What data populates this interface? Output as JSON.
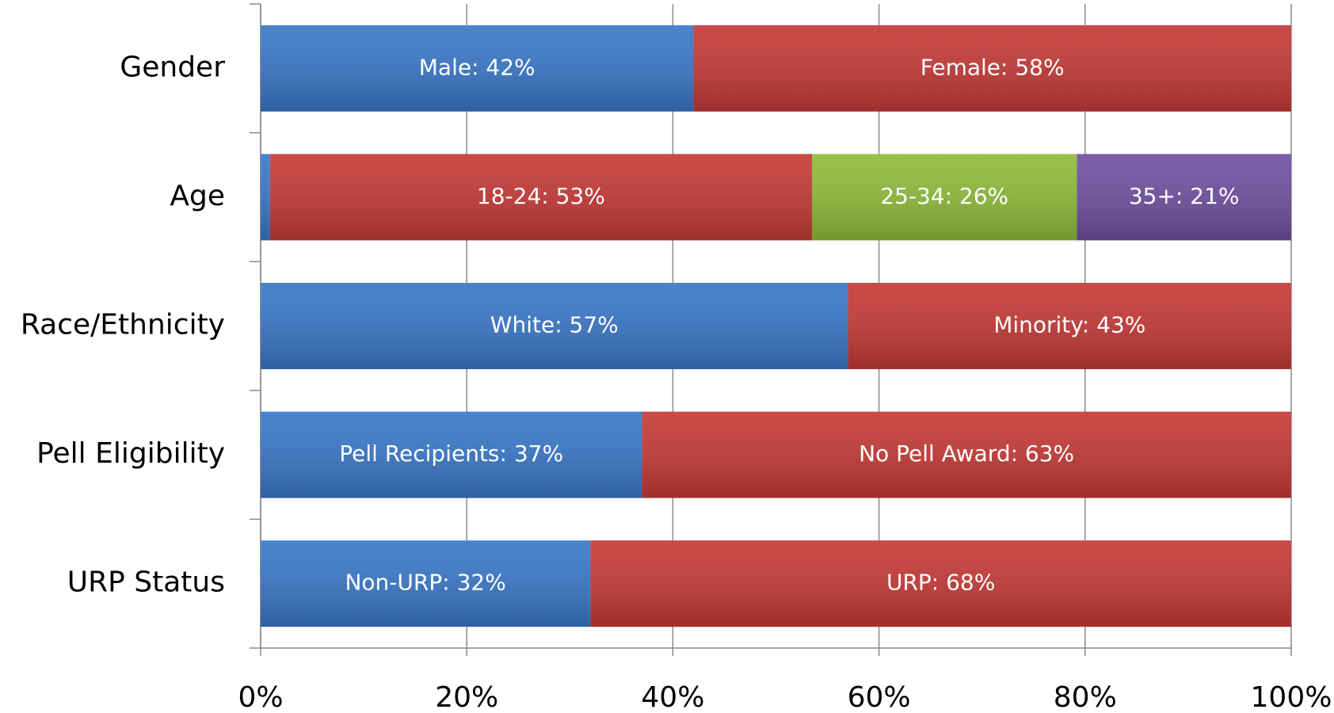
{
  "chart_data": {
    "type": "stacked-bar-horizontal",
    "categories": [
      "Gender",
      "Age",
      "Race/Ethnicity",
      "Pell Eligibility",
      "URP Status"
    ],
    "series": [
      {
        "color": "#3a78c8",
        "values": [
          42,
          0.9,
          57,
          37,
          32
        ],
        "value_labels": [
          "Male: 42%",
          null,
          "White: 57%",
          "Pell Recipients: 37%",
          "Non-URP: 32%"
        ]
      },
      {
        "color": "#c53a37",
        "values": [
          58,
          52.6,
          43,
          63,
          68
        ],
        "value_labels": [
          "Female: 58%",
          "18-24: 53%",
          "Minority: 43%",
          "No Pell Award: 63%",
          "URP: 68%"
        ]
      },
      {
        "color": "#8fbc3a",
        "values": [
          null,
          25.7,
          null,
          null,
          null
        ],
        "value_labels": [
          null,
          "25-34: 26%",
          null,
          null,
          null
        ]
      },
      {
        "color": "#7150a0",
        "values": [
          null,
          20.8,
          null,
          null,
          null
        ],
        "value_labels": [
          null,
          "35+: 21%",
          null,
          null,
          null
        ]
      }
    ],
    "xlim": [
      0,
      100
    ],
    "xticks": [
      {
        "value": 0,
        "label": "0%"
      },
      {
        "value": 20,
        "label": "20%"
      },
      {
        "value": 40,
        "label": "40%"
      },
      {
        "value": 60,
        "label": "60%"
      },
      {
        "value": 80,
        "label": "80%"
      },
      {
        "value": 100,
        "label": "100%"
      }
    ],
    "grid": true
  }
}
